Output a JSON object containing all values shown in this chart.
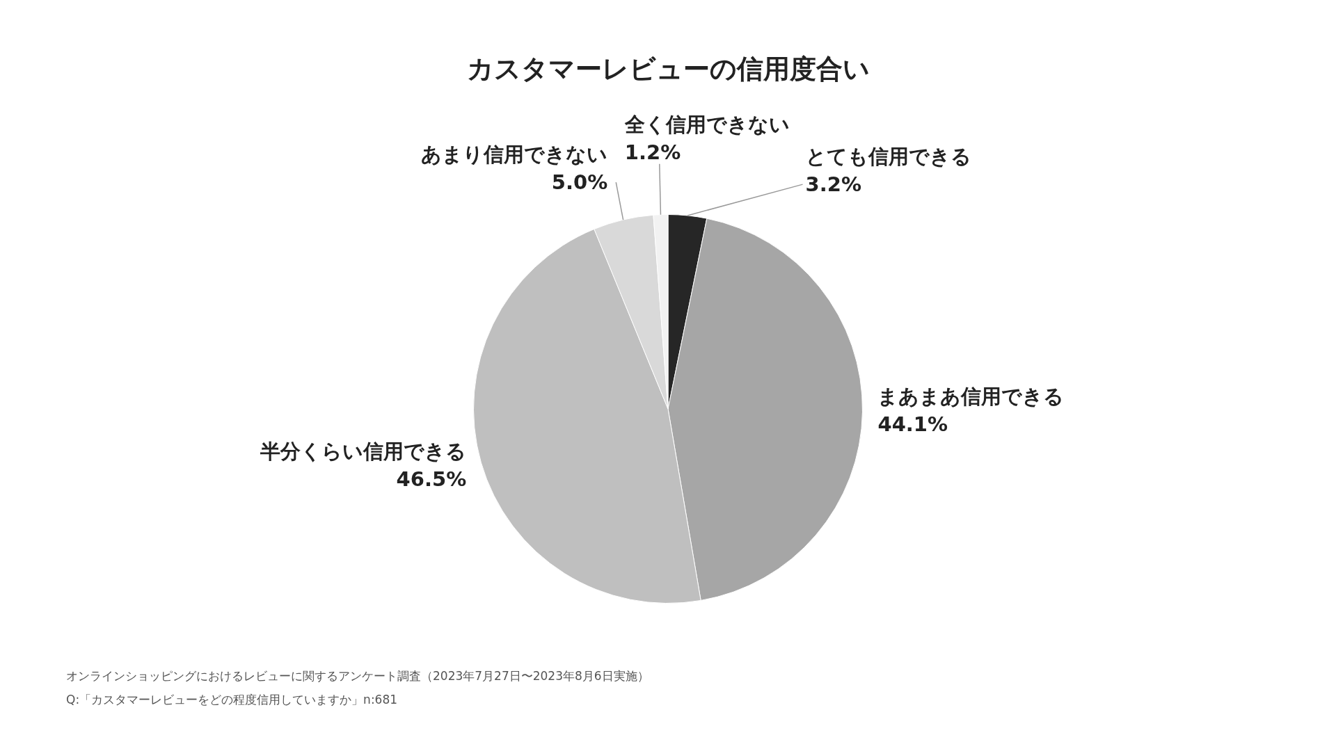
{
  "chart_data": {
    "type": "pie",
    "title": "カスタマーレビューの信用度合い",
    "categories": [
      "とても信用できる",
      "まあまあ信用できる",
      "半分くらい信用できる",
      "あまり信用できない",
      "全く信用できない"
    ],
    "values": [
      3.2,
      44.1,
      46.5,
      5.0,
      1.2
    ],
    "value_labels": [
      "3.2%",
      "44.1%",
      "46.5%",
      "5.0%",
      "1.2%"
    ],
    "colors": [
      "#262626",
      "#a6a6a6",
      "#bfbfbf",
      "#d9d9d9",
      "#f2f2f2"
    ],
    "legend": false,
    "annotations": [
      "オンラインショッピングにおけるレビューに関するアンケート調査（2023年7月27日〜2023年8月6日実施）",
      "Q:「カスタマーレビューをどの程度信用していますか」n:681"
    ]
  }
}
